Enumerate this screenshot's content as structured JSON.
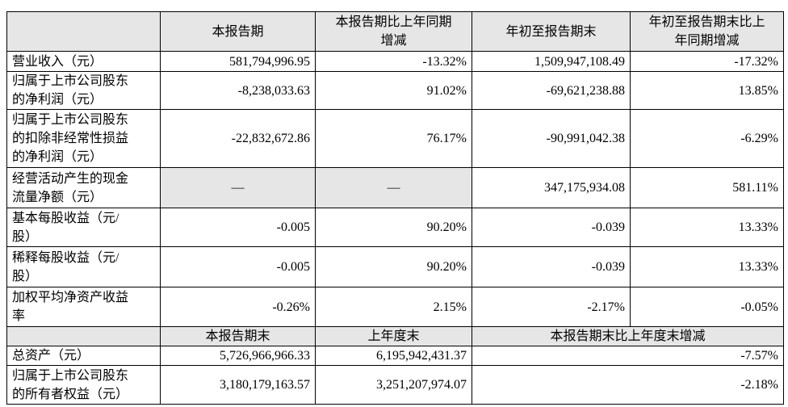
{
  "table": {
    "header": [
      [
        "本报告期"
      ],
      [
        "本报告期比上年同期",
        "增减"
      ],
      [
        "年初至报告期末"
      ],
      [
        "年初至报告期末比上",
        "年同期增减"
      ]
    ],
    "rows": [
      {
        "label": [
          "营业收入（元）"
        ],
        "cells": [
          "581,794,996.95",
          "-13.32%",
          "1,509,947,108.49",
          "-17.32%"
        ]
      },
      {
        "label": [
          "归属于上市公司股东",
          "的净利润（元）"
        ],
        "cells": [
          "-8,238,033.63",
          "91.02%",
          "-69,621,238.88",
          "13.85%"
        ]
      },
      {
        "label": [
          "归属于上市公司股东",
          "的扣除非经常性损益",
          "的净利润（元）"
        ],
        "cells": [
          "-22,832,672.86",
          "76.17%",
          "-90,991,042.38",
          "-6.29%"
        ]
      },
      {
        "label": [
          "经营活动产生的现金",
          "流量净额（元）"
        ],
        "cells": [
          "—",
          "—",
          "347,175,934.08",
          "581.11%"
        ]
      },
      {
        "label": [
          "基本每股收益（元/",
          "股）"
        ],
        "cells": [
          "-0.005",
          "90.20%",
          "-0.039",
          "13.33%"
        ]
      },
      {
        "label": [
          "稀释每股收益（元/",
          "股）"
        ],
        "cells": [
          "-0.005",
          "90.20%",
          "-0.039",
          "13.33%"
        ]
      },
      {
        "label": [
          "加权平均净资产收益",
          "率"
        ],
        "cells": [
          "-0.26%",
          "2.15%",
          "-2.17%",
          "-0.05%"
        ]
      }
    ],
    "subheader": [
      "本报告期末",
      "上年度末",
      "本报告期末比上年度末增减"
    ],
    "rows2": [
      {
        "label": [
          "总资产（元）"
        ],
        "cells": [
          "5,726,966,966.33",
          "6,195,942,431.37",
          "-7.57%"
        ]
      },
      {
        "label": [
          "归属于上市公司股东",
          "的所有者权益（元）"
        ],
        "cells": [
          "3,180,179,163.57",
          "3,251,207,974.07",
          "-2.18%"
        ]
      }
    ]
  }
}
